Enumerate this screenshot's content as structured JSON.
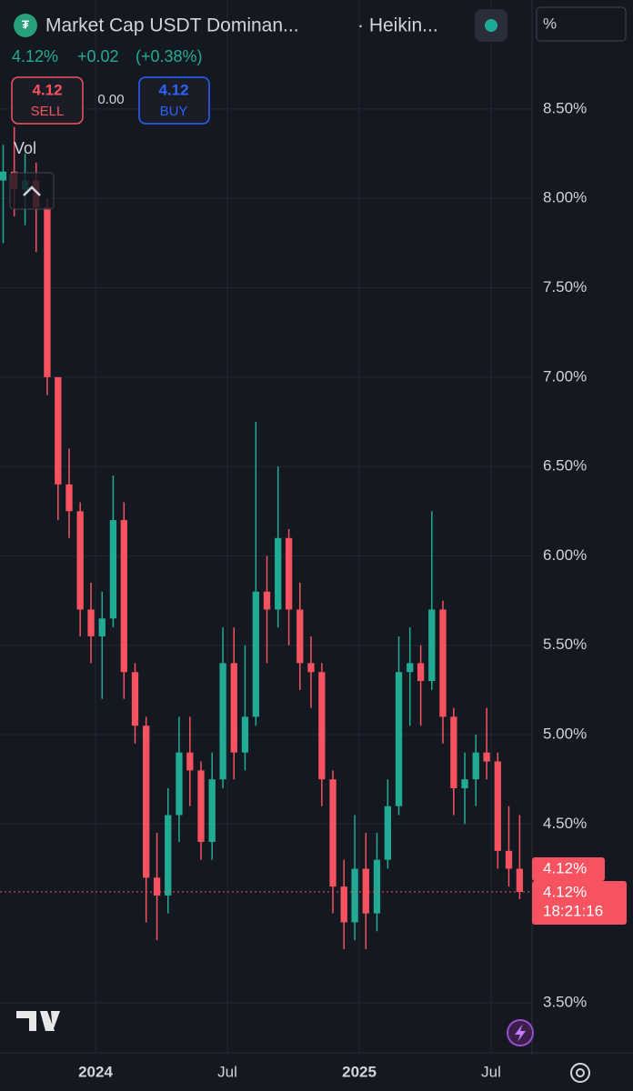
{
  "header": {
    "symbol": "Market Cap USDT Dominan...",
    "style": "· Heikin...",
    "last": "4.12%",
    "change": "+0.02",
    "change_pct": "(+0.38%)",
    "sell_price": "4.12",
    "sell": "SELL",
    "spread": "0.00",
    "buy_price": "4.12",
    "buy": "BUY",
    "volume_label": "Vol",
    "axis_mode": "%"
  },
  "chart_data": {
    "type": "candlestick",
    "x": [
      2023.65,
      2023.692,
      2023.733,
      2023.775,
      2023.817,
      2023.858,
      2023.9,
      2023.942,
      2023.983,
      2024.025,
      2024.067,
      2024.108,
      2024.15,
      2024.192,
      2024.233,
      2024.275,
      2024.317,
      2024.358,
      2024.4,
      2024.442,
      2024.483,
      2024.525,
      2024.567,
      2024.608,
      2024.65,
      2024.692,
      2024.733,
      2024.775,
      2024.817,
      2024.858,
      2024.9,
      2024.942,
      2024.983,
      2025.025,
      2025.067,
      2025.108,
      2025.15,
      2025.192,
      2025.233,
      2025.275,
      2025.317,
      2025.358,
      2025.4,
      2025.442,
      2025.483,
      2025.525,
      2025.567,
      2025.608
    ],
    "open": [
      8.1,
      8.15,
      8.05,
      8.1,
      7.95,
      7.0,
      6.4,
      6.25,
      5.7,
      5.55,
      5.65,
      6.2,
      5.35,
      5.05,
      4.2,
      4.1,
      4.55,
      4.9,
      4.8,
      4.4,
      4.75,
      5.4,
      4.9,
      5.1,
      5.8,
      5.7,
      6.1,
      5.7,
      5.4,
      5.35,
      4.75,
      4.15,
      3.95,
      4.25,
      4.0,
      4.3,
      4.6,
      5.35,
      5.4,
      5.3,
      5.7,
      5.1,
      4.7,
      4.75,
      4.9,
      4.85,
      4.35,
      4.25
    ],
    "high": [
      8.3,
      8.4,
      8.25,
      8.2,
      8.0,
      7.0,
      6.6,
      6.3,
      5.85,
      5.8,
      6.45,
      6.3,
      5.4,
      5.1,
      4.45,
      4.7,
      5.1,
      5.1,
      4.85,
      4.9,
      5.6,
      5.6,
      5.5,
      6.75,
      6.0,
      6.5,
      6.15,
      5.85,
      5.55,
      5.4,
      4.8,
      4.3,
      4.55,
      4.45,
      4.45,
      4.75,
      5.55,
      5.6,
      5.5,
      6.25,
      5.75,
      5.15,
      4.9,
      5.0,
      5.15,
      4.9,
      4.6,
      4.55
    ],
    "low": [
      7.75,
      7.9,
      7.85,
      7.7,
      6.9,
      6.2,
      6.1,
      5.55,
      5.4,
      5.2,
      5.6,
      5.2,
      4.95,
      3.95,
      3.85,
      4.0,
      4.4,
      4.6,
      4.3,
      4.3,
      4.7,
      4.75,
      4.8,
      5.05,
      5.4,
      5.6,
      5.5,
      5.25,
      5.15,
      4.6,
      4.0,
      3.8,
      3.85,
      3.8,
      3.9,
      4.25,
      4.55,
      5.05,
      5.05,
      5.25,
      4.95,
      4.55,
      4.5,
      4.6,
      4.75,
      4.25,
      4.15,
      4.08
    ],
    "close": [
      8.15,
      8.05,
      8.1,
      7.95,
      7.0,
      6.4,
      6.25,
      5.7,
      5.55,
      5.65,
      6.2,
      5.35,
      5.05,
      4.2,
      4.1,
      4.55,
      4.9,
      4.8,
      4.4,
      4.75,
      5.4,
      4.9,
      5.1,
      5.8,
      5.7,
      6.1,
      5.7,
      5.4,
      5.35,
      4.75,
      4.15,
      3.95,
      4.25,
      4.0,
      4.3,
      4.6,
      5.35,
      5.4,
      5.3,
      5.7,
      5.1,
      4.7,
      4.75,
      4.9,
      4.85,
      4.35,
      4.25,
      4.12
    ],
    "up_color": "#22ab94",
    "down_color": "#f7525f",
    "xlim": [
      2023.638,
      2025.655
    ],
    "xticks": [
      {
        "value": 2024,
        "label": "2024"
      },
      {
        "value": 2024.5,
        "label": "Jul"
      },
      {
        "value": 2025,
        "label": "2025"
      },
      {
        "value": 2025.5,
        "label": "Jul"
      }
    ],
    "ylim": [
      3.22,
      9.11
    ],
    "yticks": [
      {
        "value": 3.5,
        "label": "3.50%"
      },
      {
        "value": 4.5,
        "label": "4.50%"
      },
      {
        "value": 5,
        "label": "5.00%"
      },
      {
        "value": 5.5,
        "label": "5.50%"
      },
      {
        "value": 6,
        "label": "6.00%"
      },
      {
        "value": 6.5,
        "label": "6.50%"
      },
      {
        "value": 7,
        "label": "7.00%"
      },
      {
        "value": 7.5,
        "label": "7.50%"
      },
      {
        "value": 8,
        "label": "8.00%"
      },
      {
        "value": 8.5,
        "label": "8.50%"
      }
    ],
    "grid": true,
    "last_price": {
      "value": 4.12,
      "label": "4.12%"
    },
    "countdown": "18:21:16"
  }
}
